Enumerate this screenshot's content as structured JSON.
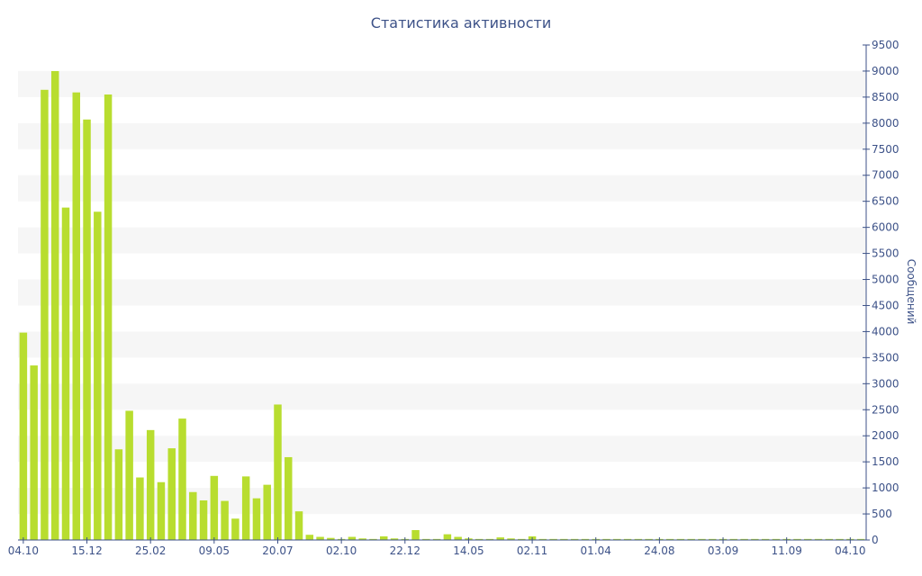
{
  "chart_data": {
    "type": "bar",
    "title": "Статистика активности",
    "ylabel": "Сообщений",
    "xlabel": "",
    "ylim": [
      0,
      9500
    ],
    "y_ticks": [
      0,
      500,
      1000,
      1500,
      2000,
      2500,
      3000,
      3500,
      4000,
      4500,
      5000,
      5500,
      6000,
      6500,
      7000,
      7500,
      8000,
      8500,
      9000,
      9500
    ],
    "y_axis_side": "right",
    "grid": "horizontal bands",
    "x_tick_labels": [
      "04.10",
      "15.12",
      "25.02",
      "09.05",
      "20.07",
      "02.10",
      "22.12",
      "14.05",
      "02.11",
      "01.04",
      "24.08",
      "03.09",
      "11.09",
      "04.10"
    ],
    "x_tick_positions": [
      0,
      6,
      12,
      18,
      24,
      30,
      36,
      42,
      48,
      54,
      60,
      66,
      72,
      78
    ],
    "x_range": [
      -0.5,
      79.5
    ],
    "series": [
      {
        "values": [
          3980,
          3350,
          8640,
          9000,
          6380,
          8590,
          8070,
          6300,
          8550,
          1740,
          2480,
          1200,
          2110,
          1110,
          1760,
          2330,
          920,
          760,
          1230,
          750,
          410,
          1220,
          800,
          1060,
          2600,
          1590,
          550,
          100,
          60,
          40,
          20,
          60,
          30,
          20,
          70,
          30,
          20,
          190,
          20,
          20,
          110,
          60,
          30,
          20,
          20,
          50,
          30,
          20,
          70,
          20,
          20,
          20,
          20,
          20,
          20,
          20,
          20,
          20,
          20,
          20,
          20,
          20,
          20,
          20,
          20,
          20,
          20,
          20,
          20,
          20,
          20,
          20,
          20,
          20,
          20,
          20,
          20,
          20,
          20,
          20
        ]
      }
    ],
    "colors": {
      "bar": "#b8dd2f",
      "axis": "#3d5288",
      "band": "#f6f6f6",
      "text": "#3d5288"
    }
  }
}
